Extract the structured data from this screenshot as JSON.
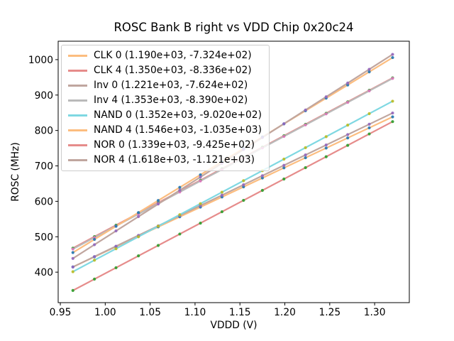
{
  "chart_data": {
    "type": "scatter",
    "title": "ROSC Bank B right vs VDD Chip 0x20c24",
    "xlabel": "VDDD (V)",
    "ylabel": "ROSC (MHz)",
    "xlim": [
      0.9476,
      1.3386
    ],
    "ylim": [
      314,
      1052
    ],
    "xticks": [
      0.95,
      1.0,
      1.05,
      1.1,
      1.15,
      1.2,
      1.25,
      1.3
    ],
    "yticks": [
      400,
      500,
      600,
      700,
      800,
      900,
      1000
    ],
    "grid": false,
    "legend_position": "upper-left",
    "x": [
      0.964,
      0.988,
      1.012,
      1.037,
      1.059,
      1.083,
      1.106,
      1.13,
      1.154,
      1.175,
      1.199,
      1.223,
      1.246,
      1.27,
      1.294,
      1.32
    ],
    "series": [
      {
        "name": "CLK 0",
        "legend_label": "CLK 0 (1.190e+03, -7.324e+02)",
        "fit_slope": 1190.0,
        "fit_intercept": -732.4,
        "line_color": "#fcbd7f",
        "point_color": "#1f77b4"
      },
      {
        "name": "CLK 4",
        "legend_label": "CLK 4 (1.350e+03, -8.336e+02)",
        "fit_slope": 1350.0,
        "fit_intercept": -833.6,
        "line_color": "#e68c8b",
        "point_color": "#2ca02c"
      },
      {
        "name": "Inv 0",
        "legend_label": "Inv 0 (1.221e+03, -7.624e+02)",
        "fit_slope": 1221.0,
        "fit_intercept": -762.4,
        "line_color": "#c0a69f",
        "point_color": "#9467bd"
      },
      {
        "name": "Inv 4",
        "legend_label": "Inv 4 (1.353e+03, -8.390e+02)",
        "fit_slope": 1353.0,
        "fit_intercept": -839.0,
        "line_color": "#bababa",
        "point_color": "#e377c2"
      },
      {
        "name": "NAND 0",
        "legend_label": "NAND 0 (1.352e+03, -9.020e+02)",
        "fit_slope": 1352.0,
        "fit_intercept": -902.0,
        "line_color": "#7fd8e2",
        "point_color": "#bcbd22"
      },
      {
        "name": "NAND 4",
        "legend_label": "NAND 4 (1.546e+03, -1.035e+03)",
        "fit_slope": 1546.0,
        "fit_intercept": -1035.0,
        "line_color": "#fcbd7f",
        "point_color": "#1f77b4"
      },
      {
        "name": "NOR 0",
        "legend_label": "NOR 0 (1.339e+03, -9.425e+02)",
        "fit_slope": 1339.0,
        "fit_intercept": -942.5,
        "line_color": "#e68c8b",
        "point_color": "#2ca02c"
      },
      {
        "name": "NOR 4",
        "legend_label": "NOR 4 (1.618e+03, -1.121e+03)",
        "fit_slope": 1618.0,
        "fit_intercept": -1121.0,
        "line_color": "#c0a69f",
        "point_color": "#9467bd"
      }
    ]
  }
}
